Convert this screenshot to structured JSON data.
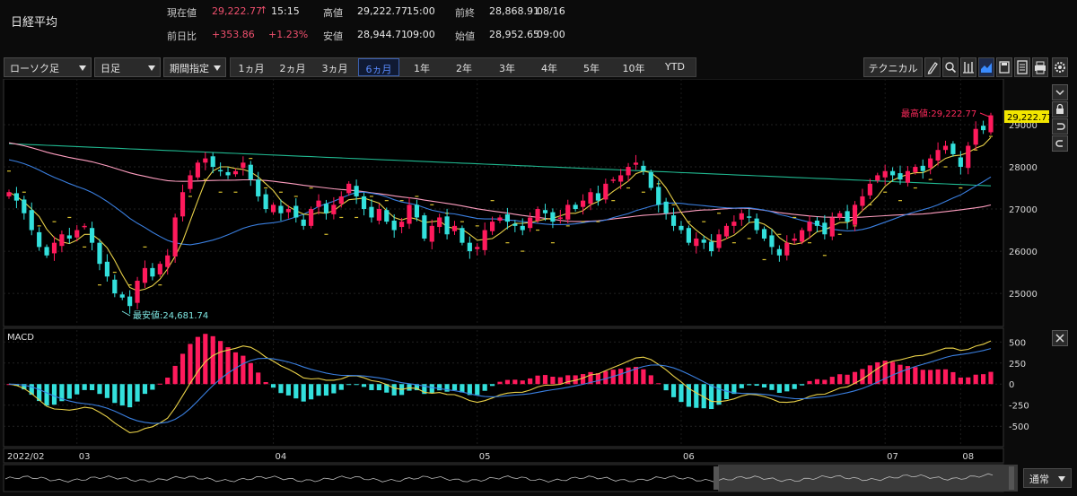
{
  "header": {
    "index_name": "日経平均",
    "current": {
      "label": "現在値",
      "value": "29,222.77",
      "arrow": "↑",
      "time": "15:15"
    },
    "high": {
      "label": "高値",
      "value": "29,222.77",
      "time": "15:00"
    },
    "prev_close": {
      "label": "前終",
      "value": "28,868.91",
      "date": "08/16"
    },
    "change": {
      "label": "前日比",
      "value": "+353.86",
      "pct": "+1.23%"
    },
    "low": {
      "label": "安値",
      "value": "28,944.71",
      "time": "09:00"
    },
    "open": {
      "label": "始値",
      "value": "28,952.65",
      "time": "09:00"
    }
  },
  "toolbar": {
    "chart_type": "ローソク足",
    "interval": "日足",
    "period_mode": "期間指定",
    "periods": [
      "1ヵ月",
      "2ヵ月",
      "3ヵ月",
      "6ヵ月",
      "1年",
      "2年",
      "3年",
      "4年",
      "5年",
      "10年",
      "YTD"
    ],
    "active_period": "6ヵ月",
    "technical_label": "テクニカル",
    "icons": [
      "pencil-icon",
      "zoom-icon",
      "bar-style-icon",
      "area-style-icon",
      "save-icon",
      "document-icon",
      "print-icon",
      "settings-icon"
    ]
  },
  "overlay": {
    "max_label": "最高値:29,222.77",
    "min_label": "最安値:24,681.74",
    "last_price": "29,222.77",
    "macd_label": "MACD",
    "mode_label": "通常"
  },
  "colors": {
    "up": "#ff1a5c",
    "down": "#33e0dc",
    "ma_short": "#e8d048",
    "ma_mid": "#3a7fe0",
    "ma_long": "#ff9ec0",
    "ma_xlong": "#20b890",
    "psar": "#d8c030"
  },
  "chart_data": {
    "type": "candlestick",
    "price_axis": {
      "ticks": [
        25000,
        26000,
        27000,
        28000,
        29000
      ],
      "range": [
        24300,
        30000
      ]
    },
    "macd_axis": {
      "ticks": [
        500,
        250,
        0,
        -250,
        -500
      ],
      "range": [
        -700,
        620
      ]
    },
    "x_labels": [
      "2022/02",
      "03",
      "04",
      "05",
      "06",
      "07",
      "08"
    ],
    "max": 29222.77,
    "min": 24681.74,
    "close_series": [
      27400,
      27200,
      26900,
      26500,
      26100,
      25900,
      26200,
      26400,
      26300,
      26500,
      26600,
      26200,
      25700,
      25400,
      25000,
      24900,
      24700,
      25300,
      25600,
      25400,
      25700,
      25900,
      26800,
      27400,
      27800,
      28100,
      28200,
      28000,
      27900,
      27800,
      27900,
      28100,
      27700,
      27300,
      27000,
      27100,
      26900,
      27000,
      26800,
      26600,
      27000,
      27200,
      26900,
      27100,
      27300,
      27600,
      27300,
      27000,
      26800,
      27000,
      26700,
      26500,
      26700,
      27100,
      26800,
      26300,
      26600,
      26800,
      26400,
      26600,
      26200,
      26000,
      26100,
      26500,
      26700,
      26800,
      26700,
      26600,
      26500,
      26800,
      27000,
      26900,
      26700,
      26800,
      27100,
      27000,
      27200,
      27400,
      27200,
      27600,
      27700,
      27800,
      28000,
      28100,
      27900,
      27500,
      27100,
      26900,
      26600,
      26500,
      26200,
      26300,
      26200,
      26000,
      26400,
      26600,
      26700,
      26900,
      26800,
      26500,
      26300,
      26100,
      25900,
      26200,
      26300,
      26500,
      26700,
      26600,
      26400,
      26800,
      26900,
      26700,
      27100,
      27300,
      27600,
      27800,
      27900,
      27800,
      27700,
      27900,
      28000,
      27900,
      28200,
      28400,
      28500,
      28300,
      28000,
      28500,
      28900,
      28870,
      29222
    ]
  }
}
